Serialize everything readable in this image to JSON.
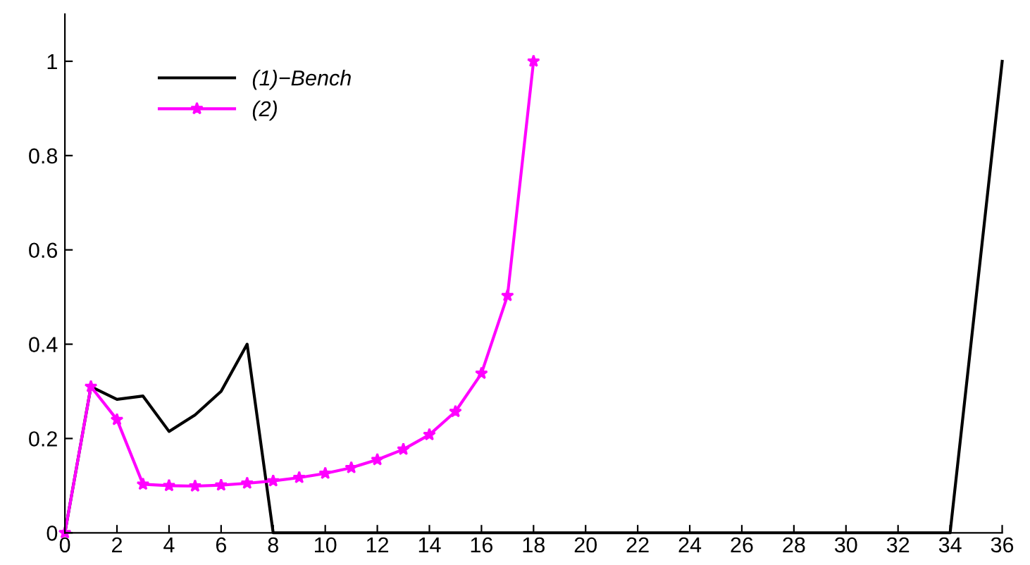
{
  "chart_data": {
    "type": "line",
    "xlim": [
      0,
      36
    ],
    "ylim": [
      0,
      1.1
    ],
    "xticks": [
      0,
      2,
      4,
      6,
      8,
      10,
      12,
      14,
      16,
      18,
      20,
      22,
      24,
      26,
      28,
      30,
      32,
      34,
      36
    ],
    "yticks": [
      0,
      0.2,
      0.4,
      0.6,
      0.8,
      1
    ],
    "legend": "top left",
    "grid": false,
    "series": [
      {
        "name": "(1)−Bench",
        "color": "#000000",
        "marker": "none",
        "x": [
          0,
          1,
          2,
          3,
          4,
          5,
          6,
          7,
          8,
          34,
          36
        ],
        "values": [
          0,
          0.31,
          0.283,
          0.29,
          0.215,
          0.25,
          0.3,
          0.4,
          0,
          0,
          1
        ]
      },
      {
        "name": "(2)",
        "color": "#ff00ff",
        "marker": "star",
        "x": [
          0,
          1,
          2,
          3,
          4,
          5,
          6,
          7,
          8,
          9,
          10,
          11,
          12,
          13,
          14,
          15,
          16,
          17,
          18
        ],
        "values": [
          0,
          0.31,
          0.24,
          0.103,
          0.1,
          0.099,
          0.101,
          0.105,
          0.11,
          0.117,
          0.126,
          0.138,
          0.155,
          0.177,
          0.208,
          0.257,
          0.338,
          0.503,
          1.0
        ]
      }
    ]
  }
}
